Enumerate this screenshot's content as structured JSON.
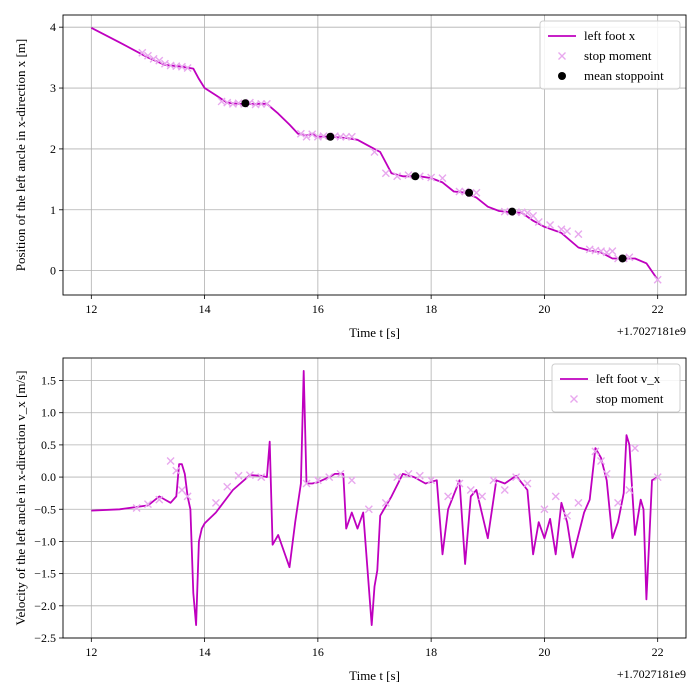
{
  "chart_data": [
    {
      "type": "line",
      "xlabel": "Time t [s]",
      "ylabel": "Position of the left ancle in x-direction x [m]",
      "x_offset_label": "+1.7027181e9",
      "xlim": [
        11.5,
        22.5
      ],
      "ylim": [
        -0.4,
        4.2
      ],
      "xticks": [
        12,
        14,
        16,
        18,
        20,
        22
      ],
      "yticks": [
        0,
        1,
        2,
        3,
        4
      ],
      "grid": true,
      "legend_position": "top-right",
      "legend": [
        "left foot x",
        "stop moment",
        "mean stoppoint"
      ],
      "colors": {
        "line": "#bf00bf",
        "stop": "#e8a8ee",
        "mean": "#000000"
      },
      "series": [
        {
          "name": "left foot x",
          "style": "line",
          "x": [
            12.0,
            12.5,
            13.0,
            13.3,
            13.6,
            13.8,
            13.9,
            14.0,
            14.2,
            14.4,
            14.6,
            14.8,
            15.1,
            15.3,
            15.5,
            15.65,
            15.8,
            15.9,
            16.0,
            16.2,
            16.5,
            16.7,
            16.9,
            17.1,
            17.3,
            17.5,
            17.8,
            18.0,
            18.2,
            18.4,
            18.6,
            18.8,
            19.0,
            19.2,
            19.4,
            19.6,
            19.8,
            20.0,
            20.3,
            20.6,
            20.8,
            21.0,
            21.2,
            21.4,
            21.6,
            21.8,
            22.0
          ],
          "y": [
            3.99,
            3.75,
            3.5,
            3.38,
            3.35,
            3.32,
            3.15,
            3.0,
            2.88,
            2.76,
            2.74,
            2.74,
            2.74,
            2.58,
            2.4,
            2.25,
            2.22,
            2.25,
            2.2,
            2.2,
            2.18,
            2.15,
            2.05,
            1.95,
            1.6,
            1.55,
            1.55,
            1.52,
            1.45,
            1.3,
            1.28,
            1.2,
            1.05,
            0.98,
            0.96,
            0.95,
            0.82,
            0.72,
            0.62,
            0.38,
            0.33,
            0.3,
            0.2,
            0.2,
            0.2,
            0.12,
            -0.15
          ]
        },
        {
          "name": "stop moment",
          "style": "scatter",
          "x": [
            12.9,
            13.0,
            13.1,
            13.2,
            13.3,
            13.4,
            13.5,
            13.6,
            13.7,
            14.3,
            14.4,
            14.5,
            14.6,
            14.7,
            14.8,
            14.9,
            15.0,
            15.1,
            15.7,
            15.8,
            15.9,
            16.0,
            16.1,
            16.3,
            16.4,
            16.5,
            16.6,
            17.0,
            17.2,
            17.4,
            17.6,
            17.8,
            18.0,
            18.2,
            18.5,
            18.6,
            18.7,
            18.8,
            19.3,
            19.4,
            19.5,
            19.6,
            19.7,
            19.8,
            19.9,
            20.1,
            20.3,
            20.4,
            20.6,
            20.8,
            20.9,
            21.0,
            21.1,
            21.2,
            21.3,
            21.4,
            21.5,
            22.0
          ],
          "y": [
            3.58,
            3.53,
            3.48,
            3.45,
            3.4,
            3.37,
            3.36,
            3.35,
            3.33,
            2.78,
            2.76,
            2.74,
            2.75,
            2.74,
            2.76,
            2.73,
            2.74,
            2.74,
            2.25,
            2.2,
            2.24,
            2.2,
            2.21,
            2.21,
            2.2,
            2.2,
            2.2,
            1.95,
            1.6,
            1.55,
            1.57,
            1.55,
            1.53,
            1.52,
            1.3,
            1.3,
            1.27,
            1.28,
            0.97,
            0.97,
            0.96,
            0.96,
            0.95,
            0.9,
            0.8,
            0.75,
            0.68,
            0.65,
            0.6,
            0.35,
            0.33,
            0.32,
            0.3,
            0.32,
            0.2,
            0.2,
            0.22,
            -0.15
          ]
        },
        {
          "name": "mean stoppoint",
          "style": "points",
          "x": [
            14.72,
            16.22,
            17.72,
            18.67,
            19.43,
            21.38
          ],
          "y": [
            2.75,
            2.2,
            1.55,
            1.28,
            0.97,
            0.2
          ]
        }
      ]
    },
    {
      "type": "line",
      "xlabel": "Time t [s]",
      "ylabel": "Velocity of the left ancle in x-direction v_x [m/s]",
      "x_offset_label": "+1.7027181e9",
      "xlim": [
        11.5,
        22.5
      ],
      "ylim": [
        -2.5,
        1.85
      ],
      "xticks": [
        12,
        14,
        16,
        18,
        20,
        22
      ],
      "yticks": [
        -2.5,
        -2.0,
        -1.5,
        -1.0,
        -0.5,
        0.0,
        0.5,
        1.0,
        1.5
      ],
      "grid": true,
      "legend_position": "top-right",
      "legend": [
        "left foot v_x",
        "stop moment"
      ],
      "colors": {
        "line": "#bf00bf",
        "stop": "#e8a8ee"
      },
      "series": [
        {
          "name": "left foot v_x",
          "style": "line",
          "x": [
            12.0,
            12.5,
            13.0,
            13.2,
            13.3,
            13.4,
            13.5,
            13.55,
            13.6,
            13.65,
            13.7,
            13.75,
            13.8,
            13.85,
            13.9,
            13.95,
            14.0,
            14.2,
            14.5,
            14.8,
            15.0,
            15.1,
            15.15,
            15.2,
            15.3,
            15.5,
            15.6,
            15.7,
            15.75,
            15.8,
            15.85,
            15.9,
            16.0,
            16.2,
            16.3,
            16.45,
            16.5,
            16.6,
            16.7,
            16.8,
            16.95,
            17.0,
            17.05,
            17.1,
            17.3,
            17.5,
            17.7,
            17.9,
            18.1,
            18.2,
            18.3,
            18.5,
            18.6,
            18.7,
            18.8,
            19.0,
            19.15,
            19.3,
            19.5,
            19.7,
            19.8,
            19.9,
            20.0,
            20.1,
            20.2,
            20.3,
            20.4,
            20.5,
            20.7,
            20.8,
            20.9,
            21.0,
            21.1,
            21.2,
            21.3,
            21.4,
            21.45,
            21.5,
            21.6,
            21.7,
            21.75,
            21.8,
            21.85,
            21.9,
            22.0
          ],
          "y": [
            -0.52,
            -0.5,
            -0.44,
            -0.3,
            -0.35,
            -0.4,
            -0.3,
            0.2,
            0.2,
            0.05,
            -0.3,
            -0.5,
            -1.8,
            -2.3,
            -1.0,
            -0.8,
            -0.72,
            -0.55,
            -0.2,
            0.03,
            0.02,
            0.0,
            0.55,
            -1.05,
            -0.9,
            -1.4,
            -0.7,
            -0.1,
            1.65,
            -0.1,
            -0.1,
            -0.1,
            -0.08,
            0.0,
            0.05,
            0.05,
            -0.8,
            -0.55,
            -0.8,
            -0.55,
            -2.3,
            -1.7,
            -1.45,
            -0.6,
            -0.3,
            0.05,
            0.0,
            -0.1,
            -0.05,
            -1.2,
            -0.5,
            -0.05,
            -1.35,
            -0.3,
            -0.2,
            -0.95,
            -0.05,
            -0.1,
            0.02,
            -0.2,
            -1.2,
            -0.7,
            -0.95,
            -0.65,
            -1.2,
            -0.4,
            -0.7,
            -1.25,
            -0.55,
            -0.35,
            0.45,
            0.3,
            -0.05,
            -0.95,
            -0.7,
            -0.25,
            0.65,
            0.5,
            -0.9,
            -0.35,
            -0.5,
            -1.9,
            -1.0,
            -0.05,
            0.0
          ]
        },
        {
          "name": "stop moment",
          "style": "scatter",
          "x": [
            12.8,
            13.0,
            13.2,
            13.4,
            13.5,
            13.6,
            13.7,
            14.2,
            14.4,
            14.6,
            14.8,
            15.0,
            15.8,
            16.0,
            16.2,
            16.4,
            16.6,
            16.9,
            17.2,
            17.4,
            17.6,
            17.8,
            18.0,
            18.3,
            18.5,
            18.7,
            18.9,
            19.1,
            19.3,
            19.5,
            19.7,
            20.0,
            20.2,
            20.4,
            20.6,
            20.9,
            21.0,
            21.1,
            21.3,
            21.5,
            21.6,
            22.0
          ],
          "y": [
            -0.48,
            -0.42,
            -0.35,
            0.25,
            0.1,
            -0.2,
            -0.3,
            -0.4,
            -0.15,
            0.02,
            0.03,
            0.0,
            -0.1,
            -0.05,
            0.0,
            0.05,
            -0.05,
            -0.5,
            -0.4,
            0.0,
            0.05,
            0.02,
            -0.05,
            -0.3,
            -0.1,
            -0.2,
            -0.3,
            -0.05,
            -0.2,
            0.0,
            -0.1,
            -0.5,
            -0.3,
            -0.6,
            -0.4,
            0.4,
            0.25,
            0.05,
            -0.4,
            -0.2,
            0.45,
            0.0
          ]
        }
      ]
    }
  ]
}
